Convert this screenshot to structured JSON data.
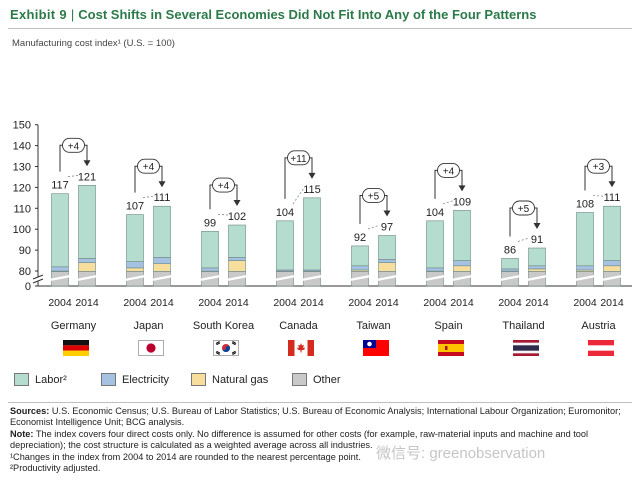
{
  "header": {
    "exhibit": "Exhibit 9",
    "title": "Cost Shifts in Several Economies Did Not Fit Into Any of the Four Patterns",
    "title_color": "#2c7a4a"
  },
  "colors": {
    "labor": "#b4dccf",
    "electricity": "#a6c2e2",
    "natural_gas": "#f8de9d",
    "other": "#c9c9c9",
    "outline": "#6f8a86",
    "axis_text": "#222222"
  },
  "chart_data": {
    "type": "bar",
    "stacked": true,
    "ylabel": "Manufacturing cost index¹ (U.S. = 100)",
    "yticks": [
      0,
      80,
      90,
      100,
      110,
      120,
      130,
      140,
      150
    ],
    "ylim": [
      0,
      150
    ],
    "axis_break": true,
    "years": [
      "2004",
      "2014"
    ],
    "categories": [
      "Germany",
      "Japan",
      "South Korea",
      "Canada",
      "Taiwan",
      "Spain",
      "Thailand",
      "Austria"
    ],
    "series": [
      {
        "name": "Labor²",
        "color": "#b4dccf"
      },
      {
        "name": "Electricity",
        "color": "#a6c2e2"
      },
      {
        "name": "Natural gas",
        "color": "#f8de9d"
      },
      {
        "name": "Other",
        "color": "#c9c9c9"
      }
    ],
    "economies": [
      {
        "name": "Germany",
        "flag": "germany",
        "bars": [
          {
            "year": "2004",
            "total": 117,
            "other": 77.5,
            "natural_gas": 2.5,
            "electricity": 2
          },
          {
            "year": "2014",
            "total": 121,
            "other": 77.5,
            "natural_gas": 6.5,
            "electricity": 2
          }
        ],
        "change": "+4"
      },
      {
        "name": "Japan",
        "flag": "japan",
        "bars": [
          {
            "year": "2004",
            "total": 107,
            "other": 77.5,
            "natural_gas": 4,
            "electricity": 3
          },
          {
            "year": "2014",
            "total": 111,
            "other": 77.5,
            "natural_gas": 6,
            "electricity": 3
          }
        ],
        "change": "+4"
      },
      {
        "name": "South Korea",
        "flag": "south-korea",
        "bars": [
          {
            "year": "2004",
            "total": 99,
            "other": 77.5,
            "natural_gas": 2,
            "electricity": 2
          },
          {
            "year": "2014",
            "total": 102,
            "other": 77.5,
            "natural_gas": 7.5,
            "electricity": 1.5
          }
        ],
        "change": "+4"
      },
      {
        "name": "Canada",
        "flag": "canada",
        "bars": [
          {
            "year": "2004",
            "total": 104,
            "other": 77.5,
            "natural_gas": 1.5,
            "electricity": 1.5
          },
          {
            "year": "2014",
            "total": 115,
            "other": 77.5,
            "natural_gas": 1.5,
            "electricity": 1.5
          }
        ],
        "change": "+11"
      },
      {
        "name": "Taiwan",
        "flag": "taiwan",
        "bars": [
          {
            "year": "2004",
            "total": 92,
            "other": 77.5,
            "natural_gas": 3,
            "electricity": 2
          },
          {
            "year": "2014",
            "total": 97,
            "other": 77.5,
            "natural_gas": 6.5,
            "electricity": 1.5
          }
        ],
        "change": "+5"
      },
      {
        "name": "Spain",
        "flag": "spain",
        "bars": [
          {
            "year": "2004",
            "total": 104,
            "other": 77.5,
            "natural_gas": 2,
            "electricity": 2
          },
          {
            "year": "2014",
            "total": 109,
            "other": 77.5,
            "natural_gas": 5,
            "electricity": 2.5
          }
        ],
        "change": "+4"
      },
      {
        "name": "Thailand",
        "flag": "thailand",
        "bars": [
          {
            "year": "2004",
            "total": 86,
            "other": 77.5,
            "natural_gas": 2,
            "electricity": 1.5
          },
          {
            "year": "2014",
            "total": 91,
            "other": 77.5,
            "natural_gas": 3.5,
            "electricity": 1.5
          }
        ],
        "change": "+5"
      },
      {
        "name": "Austria",
        "flag": "austria",
        "bars": [
          {
            "year": "2004",
            "total": 108,
            "other": 77.5,
            "natural_gas": 3,
            "electricity": 2
          },
          {
            "year": "2014",
            "total": 111,
            "other": 77.5,
            "natural_gas": 5,
            "electricity": 2.5
          }
        ],
        "change": "+3"
      }
    ]
  },
  "legend": {
    "labor": "Labor²",
    "electricity": "Electricity",
    "natural_gas": "Natural gas",
    "other": "Other"
  },
  "notes": {
    "sources_label": "Sources:",
    "sources_text": " U.S. Economic Census; U.S. Bureau of Labor Statistics; U.S. Bureau of Economic Analysis; International Labour Organization; Euromonitor; Economist Intelligence Unit; BCG analysis.",
    "note_label": "Note:",
    "note_text": " The index covers four direct costs only. No difference is assumed for other costs (for example, raw-material inputs and machine and tool depreciation); the cost structure is calculated as a weighted average across all industries.",
    "footnote1": "¹Changes in the index from 2004 to 2014 are rounded to the nearest percentage point.",
    "footnote2": "²Productivity adjusted."
  },
  "watermark": "微信号: greenobservation"
}
